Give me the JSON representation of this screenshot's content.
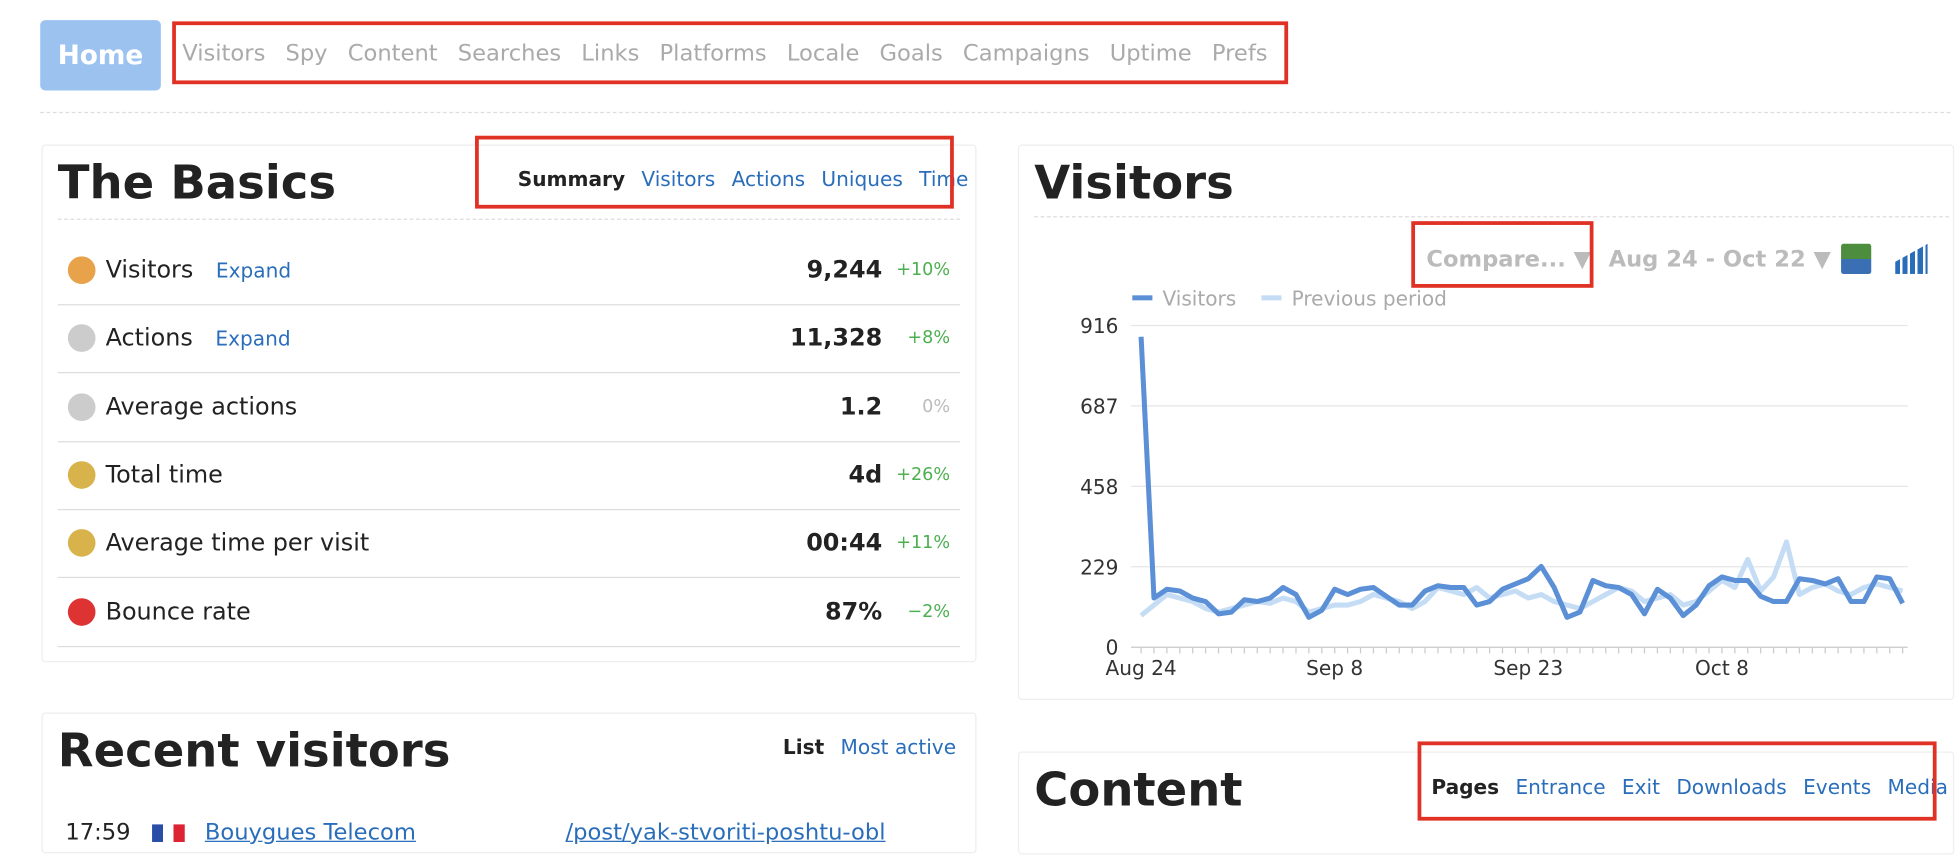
{
  "nav": {
    "home": "Home",
    "items": [
      "Visitors",
      "Spy",
      "Content",
      "Searches",
      "Links",
      "Platforms",
      "Locale",
      "Goals",
      "Campaigns",
      "Uptime",
      "Prefs"
    ]
  },
  "basics": {
    "title": "The Basics",
    "tabs": [
      "Summary",
      "Visitors",
      "Actions",
      "Uniques",
      "Time"
    ],
    "rows": [
      {
        "label": "Visitors",
        "link": "Expand",
        "value": "9,244",
        "change": "+10%"
      },
      {
        "label": "Actions",
        "link": "Expand",
        "value": "11,328",
        "change": "+8%"
      },
      {
        "label": "Average actions",
        "value": "1.2",
        "change": "0%"
      },
      {
        "label": "Total time",
        "value": "4d",
        "change": "+26%"
      },
      {
        "label": "Average time per visit",
        "value": "00:44",
        "change": "+11%"
      },
      {
        "label": "Bounce rate",
        "value": "87%",
        "change": "−2%"
      }
    ]
  },
  "visitors_panel": {
    "title": "Visitors",
    "compare": "Compare... ▼",
    "range": "Aug 24 - Oct 22 ▼"
  },
  "chart_data": {
    "type": "line",
    "categories": [
      "Aug 24",
      null,
      null,
      null,
      null,
      null,
      null,
      null,
      null,
      null,
      null,
      null,
      null,
      null,
      null,
      "Sep 8",
      null,
      null,
      null,
      null,
      null,
      null,
      null,
      null,
      null,
      null,
      null,
      null,
      null,
      null,
      "Sep 23",
      null,
      null,
      null,
      null,
      null,
      null,
      null,
      null,
      null,
      null,
      null,
      null,
      null,
      null,
      "Oct 8",
      null,
      null,
      null,
      null,
      null,
      null,
      null,
      null,
      null,
      null,
      null,
      null,
      null,
      null
    ],
    "series": [
      {
        "name": "Visitors",
        "color": "#5b8fd6",
        "values": [
          884,
          140,
          165,
          160,
          140,
          130,
          95,
          100,
          135,
          130,
          140,
          170,
          150,
          85,
          105,
          165,
          150,
          165,
          170,
          145,
          120,
          120,
          160,
          175,
          170,
          170,
          120,
          130,
          165,
          180,
          195,
          230,
          170,
          85,
          100,
          190,
          175,
          170,
          150,
          95,
          165,
          140,
          90,
          120,
          175,
          200,
          190,
          190,
          145,
          130,
          130,
          195,
          190,
          180,
          195,
          130,
          130,
          200,
          195,
          125
        ]
      },
      {
        "name": "Previous period",
        "color": "#c5dcf5",
        "values": [
          90,
          120,
          150,
          140,
          130,
          110,
          100,
          110,
          120,
          130,
          125,
          140,
          130,
          100,
          110,
          120,
          120,
          130,
          150,
          140,
          130,
          110,
          130,
          170,
          160,
          150,
          170,
          140,
          150,
          160,
          140,
          150,
          130,
          120,
          110,
          130,
          150,
          170,
          160,
          130,
          140,
          150,
          120,
          130,
          160,
          190,
          170,
          250,
          160,
          200,
          300,
          150,
          170,
          180,
          160,
          150,
          170,
          180,
          170,
          160
        ]
      }
    ],
    "ylim": [
      0,
      916
    ],
    "yticks": [
      0,
      229,
      458,
      687,
      916
    ],
    "grid": true
  },
  "recent": {
    "title": "Recent visitors",
    "tabs": [
      "List",
      "Most active"
    ],
    "row": {
      "time": "17:59",
      "isp": "Bouygues Telecom",
      "page": "/post/yak-stvoriti-poshtu-obl"
    }
  },
  "content": {
    "title": "Content",
    "tabs": [
      "Pages",
      "Entrance",
      "Exit",
      "Downloads",
      "Events",
      "Media"
    ]
  }
}
